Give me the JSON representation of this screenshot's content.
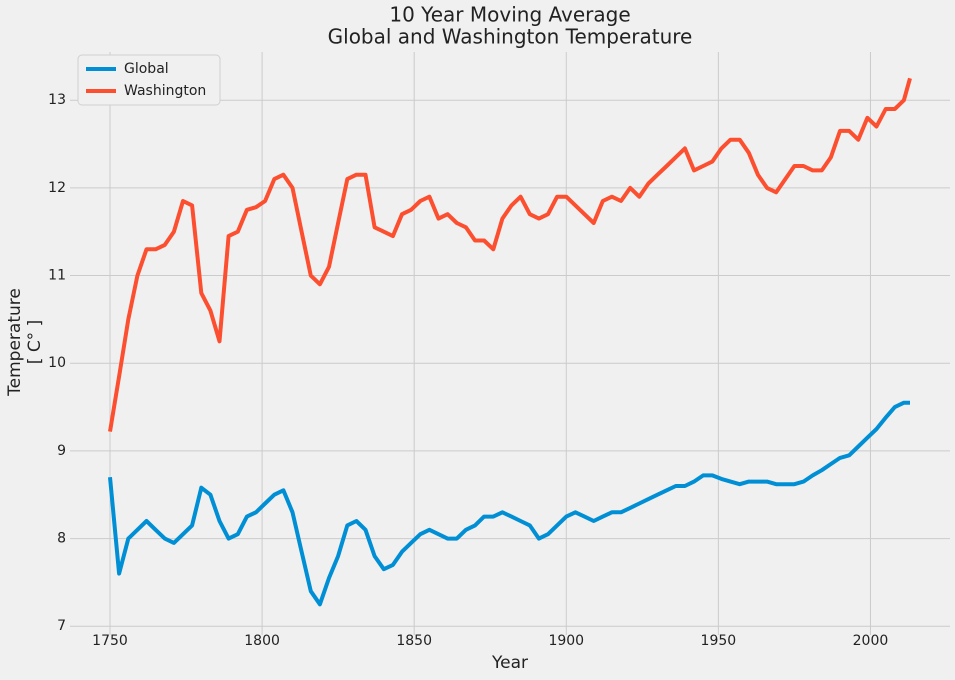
{
  "chart_data": {
    "type": "line",
    "title": [
      "10 Year Moving Average",
      "Global and Washington Temperature"
    ],
    "xlabel": "Year",
    "ylabel": [
      "Temperature",
      "[ C° ]"
    ],
    "x": [
      1750,
      1753,
      1756,
      1759,
      1762,
      1765,
      1768,
      1771,
      1774,
      1777,
      1780,
      1783,
      1786,
      1789,
      1792,
      1795,
      1798,
      1801,
      1804,
      1807,
      1810,
      1813,
      1816,
      1819,
      1822,
      1825,
      1828,
      1831,
      1834,
      1837,
      1840,
      1843,
      1846,
      1849,
      1852,
      1855,
      1858,
      1861,
      1864,
      1867,
      1870,
      1873,
      1876,
      1879,
      1882,
      1885,
      1888,
      1891,
      1894,
      1897,
      1900,
      1903,
      1906,
      1909,
      1912,
      1915,
      1918,
      1921,
      1924,
      1927,
      1930,
      1933,
      1936,
      1939,
      1942,
      1945,
      1948,
      1951,
      1954,
      1957,
      1960,
      1963,
      1966,
      1969,
      1972,
      1975,
      1978,
      1981,
      1984,
      1987,
      1990,
      1993,
      1996,
      1999,
      2002,
      2005,
      2008,
      2011,
      2013
    ],
    "series": [
      {
        "name": "Global",
        "color": "#008fd5",
        "values": [
          8.7,
          7.6,
          8.0,
          8.1,
          8.2,
          8.1,
          8.0,
          7.95,
          8.05,
          8.15,
          8.58,
          8.5,
          8.2,
          8.0,
          8.05,
          8.25,
          8.3,
          8.4,
          8.5,
          8.55,
          8.3,
          7.85,
          7.4,
          7.25,
          7.55,
          7.8,
          8.15,
          8.2,
          8.1,
          7.8,
          7.65,
          7.7,
          7.85,
          7.95,
          8.05,
          8.1,
          8.05,
          8.0,
          8.0,
          8.1,
          8.15,
          8.25,
          8.25,
          8.3,
          8.25,
          8.2,
          8.15,
          8.0,
          8.05,
          8.15,
          8.25,
          8.3,
          8.25,
          8.2,
          8.25,
          8.3,
          8.3,
          8.35,
          8.4,
          8.45,
          8.5,
          8.55,
          8.6,
          8.6,
          8.65,
          8.72,
          8.72,
          8.68,
          8.65,
          8.62,
          8.65,
          8.65,
          8.65,
          8.62,
          8.62,
          8.62,
          8.65,
          8.72,
          8.78,
          8.85,
          8.92,
          8.95,
          9.05,
          9.15,
          9.25,
          9.38,
          9.5,
          9.55,
          9.55
        ]
      },
      {
        "name": "Washington",
        "color": "#fc4f30",
        "values": [
          9.22,
          9.85,
          10.5,
          11.0,
          11.3,
          11.3,
          11.35,
          11.5,
          11.85,
          11.8,
          10.8,
          10.6,
          10.25,
          11.45,
          11.5,
          11.75,
          11.78,
          11.85,
          12.1,
          12.15,
          12.0,
          11.5,
          11.0,
          10.9,
          11.1,
          11.6,
          12.1,
          12.15,
          12.15,
          11.55,
          11.5,
          11.45,
          11.7,
          11.75,
          11.85,
          11.9,
          11.65,
          11.7,
          11.6,
          11.55,
          11.4,
          11.4,
          11.3,
          11.65,
          11.8,
          11.9,
          11.7,
          11.65,
          11.7,
          11.9,
          11.9,
          11.8,
          11.7,
          11.6,
          11.85,
          11.9,
          11.85,
          12.0,
          11.9,
          12.05,
          12.15,
          12.25,
          12.35,
          12.45,
          12.2,
          12.25,
          12.3,
          12.45,
          12.55,
          12.55,
          12.4,
          12.15,
          12.0,
          11.95,
          12.1,
          12.25,
          12.25,
          12.2,
          12.2,
          12.35,
          12.65,
          12.65,
          12.55,
          12.8,
          12.7,
          12.9,
          12.9,
          13.0,
          13.25
        ]
      }
    ],
    "xlim": [
      1736.85,
      2026.15
    ],
    "xticks": [
      1750,
      1800,
      1850,
      1900,
      1950,
      2000
    ],
    "ylim": [
      6.9,
      13.55
    ],
    "yticks": [
      7,
      8,
      9,
      10,
      11,
      12,
      13
    ],
    "grid": true,
    "legend": "upper-left"
  }
}
